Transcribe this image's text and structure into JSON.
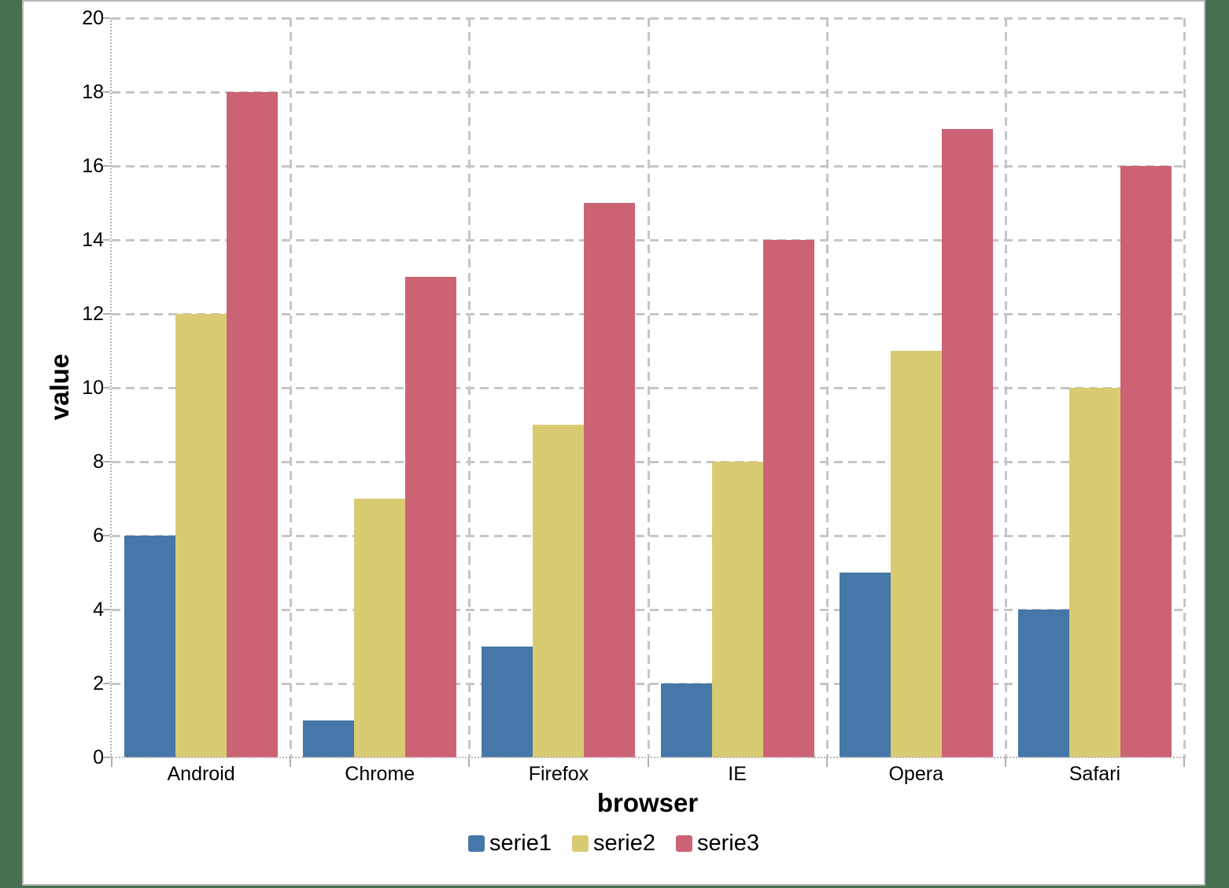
{
  "chart_data": {
    "type": "bar",
    "title": "",
    "categories": [
      "Android",
      "Chrome",
      "Firefox",
      "IE",
      "Opera",
      "Safari"
    ],
    "series": [
      {
        "name": "serie1",
        "color": "#4577A9",
        "values": [
          6,
          1,
          3,
          2,
          5,
          4
        ]
      },
      {
        "name": "serie2",
        "color": "#D9CB72",
        "values": [
          12,
          7,
          9,
          8,
          11,
          10
        ]
      },
      {
        "name": "serie3",
        "color": "#CB6375",
        "values": [
          18,
          13,
          15,
          14,
          17,
          16
        ]
      }
    ],
    "xlabel": "browser",
    "ylabel": "value",
    "ylim": [
      0,
      20
    ],
    "ytick_step": 2,
    "grid": true,
    "legend_position": "bottom"
  },
  "colors": {
    "background": "#487050",
    "canvas": "#FFFFFF",
    "card_border": "#B9B9B9",
    "gridline": "#C6C6C6",
    "axis": "#B5B5B5",
    "text": "#000000"
  }
}
